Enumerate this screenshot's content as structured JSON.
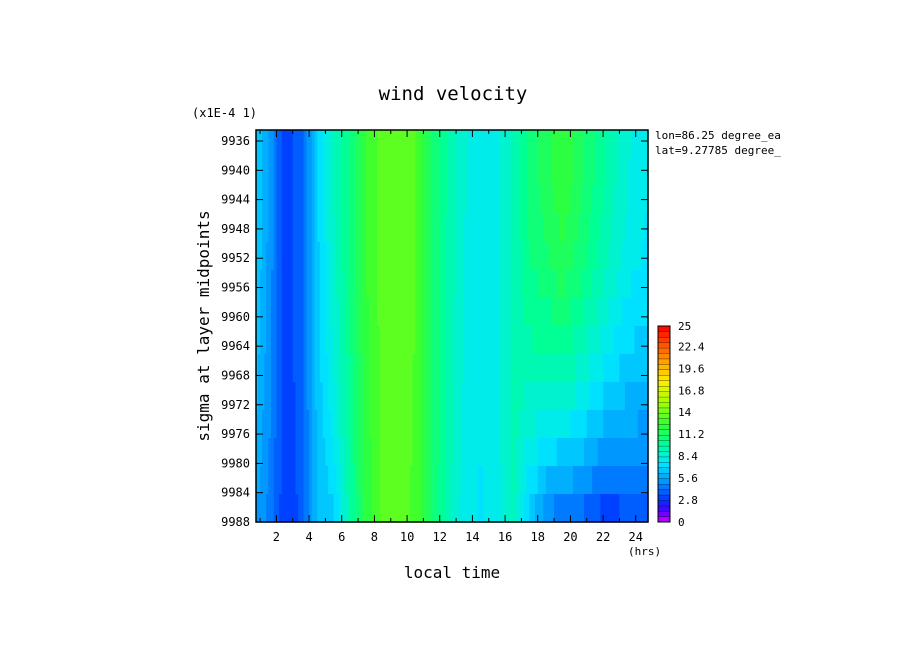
{
  "chart_data": {
    "type": "heatmap",
    "title": "wind velocity",
    "scale_note": "(x1E-4 1)",
    "xlabel": "local time",
    "x_unit": "(hrs)",
    "ylabel": "sigma at layer midpoints",
    "x_ticks": [
      "2",
      "4",
      "6",
      "8",
      "10",
      "12",
      "14",
      "16",
      "18",
      "20",
      "22",
      "24"
    ],
    "y_ticks": [
      "9936",
      "9940",
      "9944",
      "9948",
      "9952",
      "9956",
      "9960",
      "9964",
      "9968",
      "9972",
      "9976",
      "9980",
      "9984",
      "9988"
    ],
    "xlim": [
      0.75,
      24.75
    ],
    "ylim": [
      9988,
      9934.5
    ],
    "colorbar": {
      "range": [
        0,
        25
      ],
      "ticks": [
        "25",
        "22.4",
        "19.6",
        "16.8",
        "14",
        "11.2",
        "8.4",
        "5.6",
        "2.8",
        "0"
      ]
    },
    "annotations": [
      "lon=86.25 degree_ea",
      "lat=9.27785 degree_"
    ],
    "columns_x": [
      0.75,
      1.5,
      2.5,
      3.5,
      4.5,
      5.5,
      6.5,
      7.5,
      8.5,
      9.5,
      10.5,
      11.5,
      12.5,
      13.5,
      14.5,
      15.5,
      16.5,
      17.5,
      18.5,
      19.5,
      20.5,
      21.5,
      22.5,
      23.5,
      24.75
    ],
    "column_values_top": [
      7.0,
      5.5,
      3.2,
      3.8,
      6.8,
      9.0,
      10.5,
      12.5,
      13.5,
      13.8,
      13.2,
      11.2,
      9.6,
      8.4,
      7.8,
      8.2,
      9.2,
      10.8,
      11.5,
      12.4,
      11.5,
      10.5,
      9.4,
      8.4,
      7.8
    ],
    "column_values_bottom": [
      5.5,
      4.6,
      3.0,
      3.6,
      6.2,
      6.8,
      9.5,
      12.0,
      13.3,
      13.5,
      13.0,
      11.2,
      9.2,
      8.0,
      7.5,
      8.0,
      9.2,
      6.5,
      4.8,
      3.8,
      3.8,
      3.0,
      2.8,
      3.2,
      3.4
    ]
  }
}
